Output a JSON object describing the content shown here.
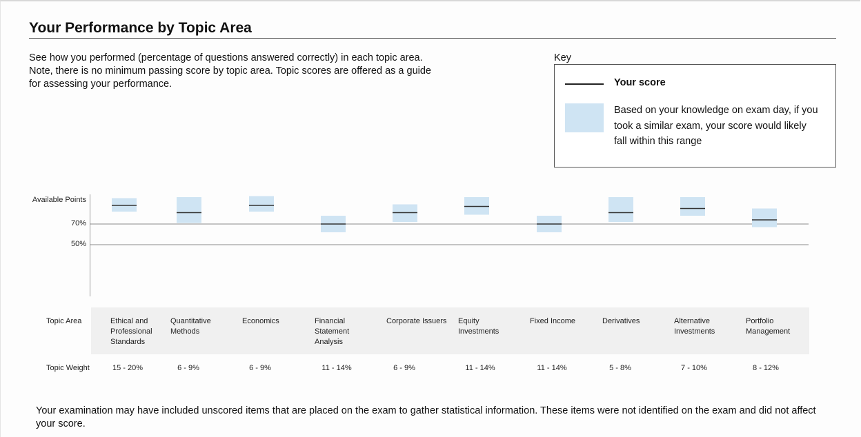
{
  "header": {
    "title": "Your Performance by Topic Area",
    "intro": "See how you performed (percentage of questions answered correctly) in each topic area. Note, there is no minimum passing score by topic area. Topic scores are offered as a guide for assessing your performance."
  },
  "key": {
    "label": "Key",
    "score_label": "Your score",
    "range_label": "Based on your knowledge on exam day, if you took a similar exam, your score would likely fall within this range"
  },
  "table": {
    "topic_area_label": "Topic Area",
    "topic_weight_label": "Topic Weight",
    "topics": [
      {
        "name": "Ethical and Professional Standards",
        "weight": "15 - 20%"
      },
      {
        "name": "Quantitative Methods",
        "weight": "6 - 9%"
      },
      {
        "name": "Economics",
        "weight": "6 - 9%"
      },
      {
        "name": "Financial Statement Analysis",
        "weight": "11 - 14%"
      },
      {
        "name": "Corporate Issuers",
        "weight": "6 - 9%"
      },
      {
        "name": "Equity Investments",
        "weight": "11 - 14%"
      },
      {
        "name": "Fixed Income",
        "weight": "11 - 14%"
      },
      {
        "name": "Derivatives",
        "weight": "5 - 8%"
      },
      {
        "name": "Alternative Investments",
        "weight": "7 - 10%"
      },
      {
        "name": "Portfolio Management",
        "weight": "8 - 12%"
      }
    ]
  },
  "footnote": "Your examination may have included unscored items that are placed on the exam to gather statistical information. These items were not identified on the exam and did not affect your score.",
  "colors": {
    "range_fill": "#cfe4f3",
    "score_line": "#333333",
    "grid": "#8a8a8a"
  },
  "chart_data": {
    "type": "range-bar",
    "ylabel": "Available Points",
    "yticks": [
      {
        "value": 70,
        "label": "70%"
      },
      {
        "value": 50,
        "label": "50%"
      }
    ],
    "ylim": [
      0,
      100
    ],
    "categories": [
      "Ethical and Professional Standards",
      "Quantitative Methods",
      "Economics",
      "Financial Statement Analysis",
      "Corporate Issuers",
      "Equity Investments",
      "Fixed Income",
      "Derivatives",
      "Alternative Investments",
      "Portfolio Management"
    ],
    "series": [
      {
        "name": "Your score",
        "values": [
          88,
          81,
          88,
          70,
          81,
          87,
          70,
          81,
          85,
          74
        ]
      },
      {
        "name": "Range low",
        "values": [
          82,
          71,
          82,
          62,
          72,
          79,
          62,
          72,
          78,
          67
        ]
      },
      {
        "name": "Range high",
        "values": [
          95,
          96,
          97,
          78,
          89,
          96,
          78,
          96,
          96,
          85
        ]
      }
    ]
  }
}
